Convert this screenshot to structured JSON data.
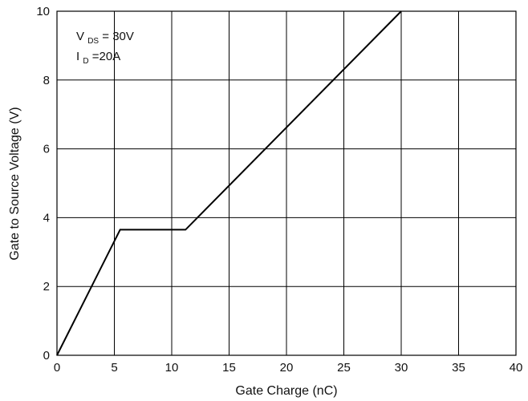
{
  "chart_data": {
    "type": "line",
    "xlabel": "Gate Charge (nC)",
    "ylabel": "Gate to Source Voltage (V)",
    "xlim": [
      0,
      40
    ],
    "ylim": [
      0,
      10
    ],
    "xticks": [
      "0",
      "5",
      "10",
      "15",
      "20",
      "25",
      "30",
      "35",
      "40"
    ],
    "yticks": [
      "0",
      "2",
      "4",
      "6",
      "8",
      "10"
    ],
    "grid": true,
    "annotation": {
      "line1_main": "V",
      "line1_sub": "DS",
      "line1_rest": "= 30V",
      "line2_main": "I",
      "line2_sub": "D",
      "line2_rest": "=20A"
    },
    "series": [
      {
        "x": [
          0,
          5.5,
          11.2,
          30
        ],
        "y": [
          0,
          3.65,
          3.65,
          10
        ],
        "color": "#000000"
      }
    ]
  }
}
